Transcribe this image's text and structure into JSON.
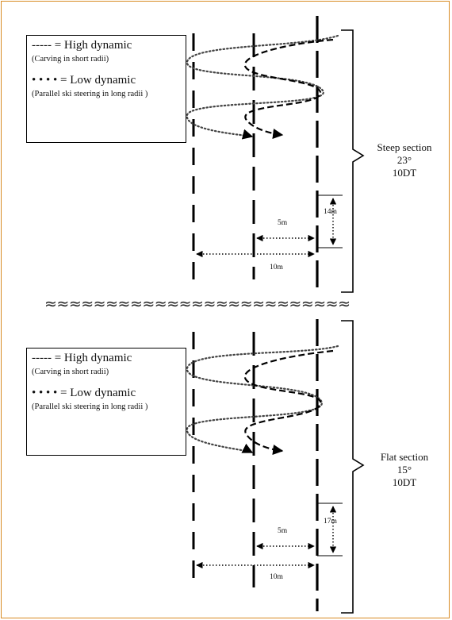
{
  "legend": {
    "high_title": "----- = High dynamic",
    "high_sub": "(Carving in short radii)",
    "low_title": "• • • • = Low dynamic",
    "low_sub": "(Parallel ski steering in long radii )"
  },
  "steep": {
    "name": "Steep section",
    "angle": "23°",
    "gates": "10DT",
    "gate_spacing": "14m",
    "dist_5": "5m",
    "dist_10": "10m"
  },
  "flat": {
    "name": "Flat section",
    "angle": "15°",
    "gates": "10DT",
    "gate_spacing": "17m",
    "dist_5": "5m",
    "dist_10": "10m"
  },
  "separator": "≈≈≈≈≈≈≈≈≈≈≈≈≈≈≈≈≈≈≈≈≈≈≈≈≈",
  "colors": {
    "frame": "#d88a22",
    "line": "#000000"
  }
}
